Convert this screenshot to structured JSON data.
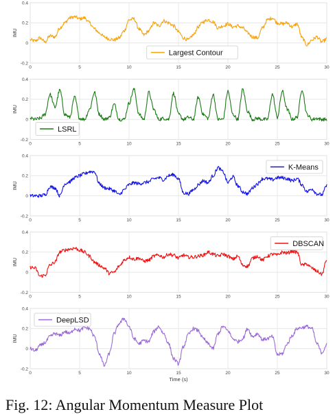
{
  "caption": "Fig. 12: Angular Momentum Measure Plot",
  "chart_data": [
    {
      "type": "line",
      "series": [
        {
          "name": "Largest Contour",
          "color": "#f5a30f",
          "x": [
            0,
            0.5,
            1,
            1.5,
            2,
            2.5,
            3,
            3.5,
            4,
            4.5,
            5,
            5.5,
            6,
            6.5,
            7,
            7.5,
            8,
            8.5,
            9,
            9.5,
            10,
            10.5,
            11,
            11.5,
            12,
            12.5,
            13,
            13.5,
            14,
            14.5,
            15,
            15.5,
            16,
            16.5,
            17,
            17.5,
            18,
            18.5,
            19,
            19.5,
            20,
            20.5,
            21,
            21.5,
            22,
            22.5,
            23,
            23.5,
            24,
            24.5,
            25,
            25.5,
            26,
            26.5,
            27,
            27.5,
            28,
            28.5,
            29,
            29.5,
            30
          ],
          "y": [
            0.03,
            0.02,
            0.05,
            0.01,
            0.07,
            0.06,
            0.15,
            0.2,
            0.25,
            0.26,
            0.24,
            0.25,
            0.2,
            0.14,
            0.1,
            0.06,
            0.04,
            0.03,
            0.05,
            0.12,
            0.23,
            0.24,
            0.14,
            0.08,
            0.12,
            0.2,
            0.17,
            0.22,
            0.2,
            0.17,
            0.11,
            0.05,
            0.03,
            0.08,
            0.16,
            0.21,
            0.23,
            0.21,
            0.15,
            0.17,
            0.19,
            0.16,
            0.17,
            0.15,
            0.1,
            0.06,
            0.05,
            0.15,
            0.23,
            0.25,
            0.2,
            0.19,
            0.2,
            0.16,
            0.19,
            0.05,
            -0.02,
            0.03,
            0.06,
            0.01,
            0.04
          ]
        }
      ],
      "xlim": [
        0,
        30
      ],
      "ylim": [
        -0.2,
        0.4
      ],
      "xticks": [
        "0",
        "5",
        "10",
        "15",
        "20",
        "25",
        "30"
      ],
      "yticks": [
        "-0.2",
        "0",
        "0.2",
        "0.4"
      ],
      "ylabel": "IMU",
      "xlabel": "",
      "legend": {
        "position": "bottom-center"
      },
      "grid": true
    },
    {
      "type": "line",
      "series": [
        {
          "name": "LSRL",
          "color": "#1a7a14",
          "x": [
            0,
            0.5,
            1,
            1.5,
            2,
            2.5,
            3,
            3.5,
            4,
            4.5,
            5,
            5.5,
            6,
            6.5,
            7,
            7.5,
            8,
            8.5,
            9,
            9.5,
            10,
            10.5,
            11,
            11.5,
            12,
            12.5,
            13,
            13.5,
            14,
            14.5,
            15,
            15.5,
            16,
            16.5,
            17,
            17.5,
            18,
            18.5,
            19,
            19.5,
            20,
            20.5,
            21,
            21.5,
            22,
            22.5,
            23,
            23.5,
            24,
            24.5,
            25,
            25.5,
            26,
            26.5,
            27,
            27.5,
            28,
            28.5,
            29,
            29.5,
            30
          ],
          "y": [
            0.01,
            0.0,
            0.01,
            0.05,
            0.25,
            0.12,
            0.29,
            0.05,
            0.02,
            0.22,
            0.01,
            0.0,
            0.1,
            0.27,
            0.05,
            0.0,
            0.02,
            0.15,
            0.0,
            0.0,
            0.16,
            0.3,
            0.05,
            0.0,
            0.27,
            0.1,
            0.0,
            0.01,
            0.0,
            0.26,
            0.05,
            0.0,
            0.02,
            0.0,
            0.22,
            0.05,
            0.01,
            0.25,
            0.0,
            0.0,
            0.28,
            0.05,
            0.0,
            0.3,
            0.08,
            0.0,
            0.01,
            0.0,
            0.0,
            0.25,
            0.02,
            0.28,
            0.1,
            0.0,
            0.02,
            0.3,
            0.05,
            0.0,
            0.01,
            0.0,
            0.0
          ]
        }
      ],
      "xlim": [
        0,
        30
      ],
      "ylim": [
        -0.2,
        0.4
      ],
      "xticks": [
        "0",
        "5",
        "10",
        "15",
        "20",
        "25",
        "30"
      ],
      "yticks": [
        "-0.2",
        "0",
        "0.2",
        "0.4"
      ],
      "ylabel": "IMU",
      "xlabel": "",
      "legend": {
        "position": "bottom-left"
      },
      "grid": true
    },
    {
      "type": "line",
      "series": [
        {
          "name": "K-Means",
          "color": "#1212e8",
          "x": [
            0,
            0.5,
            1,
            1.5,
            2,
            2.5,
            3,
            3.5,
            4,
            4.5,
            5,
            5.5,
            6,
            6.5,
            7,
            7.5,
            8,
            8.5,
            9,
            9.5,
            10,
            10.5,
            11,
            11.5,
            12,
            12.5,
            13,
            13.5,
            14,
            14.5,
            15,
            15.5,
            16,
            16.5,
            17,
            17.5,
            18,
            18.5,
            19,
            19.5,
            20,
            20.5,
            21,
            21.5,
            22,
            22.5,
            23,
            23.5,
            24,
            24.5,
            25,
            25.5,
            26,
            26.5,
            27,
            27.5,
            28,
            28.5,
            29,
            29.5,
            30
          ],
          "y": [
            0.0,
            0.0,
            0.0,
            0.01,
            0.09,
            0.08,
            0.0,
            0.12,
            0.14,
            0.18,
            0.2,
            0.22,
            0.24,
            0.24,
            0.12,
            0.08,
            0.07,
            0.05,
            0.01,
            0.06,
            0.11,
            0.13,
            0.12,
            0.13,
            0.14,
            0.17,
            0.18,
            0.16,
            0.2,
            0.21,
            0.17,
            0.03,
            0.02,
            0.06,
            0.11,
            0.15,
            0.13,
            0.2,
            0.28,
            0.24,
            0.13,
            0.19,
            0.1,
            0.04,
            0.02,
            0.08,
            0.12,
            0.17,
            0.17,
            0.16,
            0.18,
            0.18,
            0.17,
            0.15,
            0.17,
            0.11,
            0.04,
            0.07,
            0.02,
            0.01,
            0.1
          ]
        }
      ],
      "xlim": [
        0,
        30
      ],
      "ylim": [
        -0.2,
        0.4
      ],
      "xticks": [
        "0",
        "5",
        "10",
        "15",
        "20",
        "25",
        "30"
      ],
      "yticks": [
        "-0.2",
        "0",
        "0.2",
        "0.4"
      ],
      "ylabel": "IMU",
      "xlabel": "",
      "legend": {
        "position": "top-right"
      },
      "grid": true
    },
    {
      "type": "line",
      "series": [
        {
          "name": "DBSCAN",
          "color": "#ee1111",
          "x": [
            0,
            0.5,
            1,
            1.5,
            2,
            2.5,
            3,
            3.5,
            4,
            4.5,
            5,
            5.5,
            6,
            6.5,
            7,
            7.5,
            8,
            8.5,
            9,
            9.5,
            10,
            10.5,
            11,
            11.5,
            12,
            12.5,
            13,
            13.5,
            14,
            14.5,
            15,
            15.5,
            16,
            16.5,
            17,
            17.5,
            18,
            18.5,
            19,
            19.5,
            20,
            20.5,
            21,
            21.5,
            22,
            22.5,
            23,
            23.5,
            24,
            24.5,
            25,
            25.5,
            26,
            26.5,
            27,
            27.5,
            28,
            28.5,
            29,
            29.5,
            30
          ],
          "y": [
            0.05,
            0.04,
            -0.04,
            -0.03,
            0.07,
            0.1,
            0.2,
            0.22,
            0.23,
            0.24,
            0.22,
            0.2,
            0.16,
            0.1,
            0.07,
            0.04,
            -0.01,
            0.0,
            0.06,
            0.12,
            0.15,
            0.13,
            0.14,
            0.11,
            0.12,
            0.16,
            0.17,
            0.15,
            0.18,
            0.17,
            0.14,
            0.17,
            0.15,
            0.15,
            0.16,
            0.17,
            0.2,
            0.18,
            0.16,
            0.18,
            0.16,
            0.13,
            0.16,
            0.07,
            0.06,
            0.14,
            0.16,
            0.12,
            0.16,
            0.18,
            0.17,
            0.2,
            0.19,
            0.21,
            0.2,
            0.07,
            0.08,
            0.04,
            0.01,
            -0.02,
            0.12
          ]
        }
      ],
      "xlim": [
        0,
        30
      ],
      "ylim": [
        -0.2,
        0.4
      ],
      "xticks": [
        "0",
        "5",
        "10",
        "15",
        "20",
        "25",
        "30"
      ],
      "yticks": [
        "-0.2",
        "0",
        "0.2",
        "0.4"
      ],
      "ylabel": "IMU",
      "xlabel": "",
      "legend": {
        "position": "top-right"
      },
      "grid": true
    },
    {
      "type": "line",
      "series": [
        {
          "name": "DeepLSD",
          "color": "#9a6ad6",
          "x": [
            0,
            0.5,
            1,
            1.5,
            2,
            2.5,
            3,
            3.5,
            4,
            4.5,
            5,
            5.5,
            6,
            6.5,
            7,
            7.5,
            8,
            8.5,
            9,
            9.5,
            10,
            10.5,
            11,
            11.5,
            12,
            12.5,
            13,
            13.5,
            14,
            14.5,
            15,
            15.5,
            16,
            16.5,
            17,
            17.5,
            18,
            18.5,
            19,
            19.5,
            20,
            20.5,
            21,
            21.5,
            22,
            22.5,
            23,
            23.5,
            24,
            24.5,
            25,
            25.5,
            26,
            26.5,
            27,
            27.5,
            28,
            28.5,
            29,
            29.5,
            30
          ],
          "y": [
            0.0,
            -0.02,
            0.03,
            0.06,
            0.12,
            0.15,
            0.13,
            0.17,
            0.15,
            0.2,
            0.18,
            0.21,
            0.2,
            0.12,
            -0.05,
            -0.17,
            -0.05,
            0.15,
            0.25,
            0.3,
            0.22,
            0.1,
            0.05,
            0.08,
            0.07,
            0.17,
            0.22,
            0.15,
            0.05,
            -0.1,
            -0.15,
            0.02,
            0.14,
            0.2,
            0.18,
            0.1,
            0.05,
            0.0,
            0.15,
            0.22,
            0.18,
            0.1,
            0.07,
            0.1,
            0.2,
            0.12,
            0.15,
            0.09,
            0.1,
            0.12,
            -0.06,
            -0.05,
            0.05,
            0.13,
            0.2,
            0.21,
            0.22,
            0.2,
            0.05,
            -0.04,
            0.04
          ]
        }
      ],
      "xlim": [
        0,
        30
      ],
      "ylim": [
        -0.2,
        0.4
      ],
      "xticks": [
        "0",
        "5",
        "10",
        "15",
        "20",
        "25",
        "30"
      ],
      "yticks": [
        "-0.2",
        "0",
        "0.2",
        "0.4"
      ],
      "ylabel": "IMU",
      "xlabel": "Time (s)",
      "legend": {
        "position": "top-left"
      },
      "grid": true
    }
  ]
}
